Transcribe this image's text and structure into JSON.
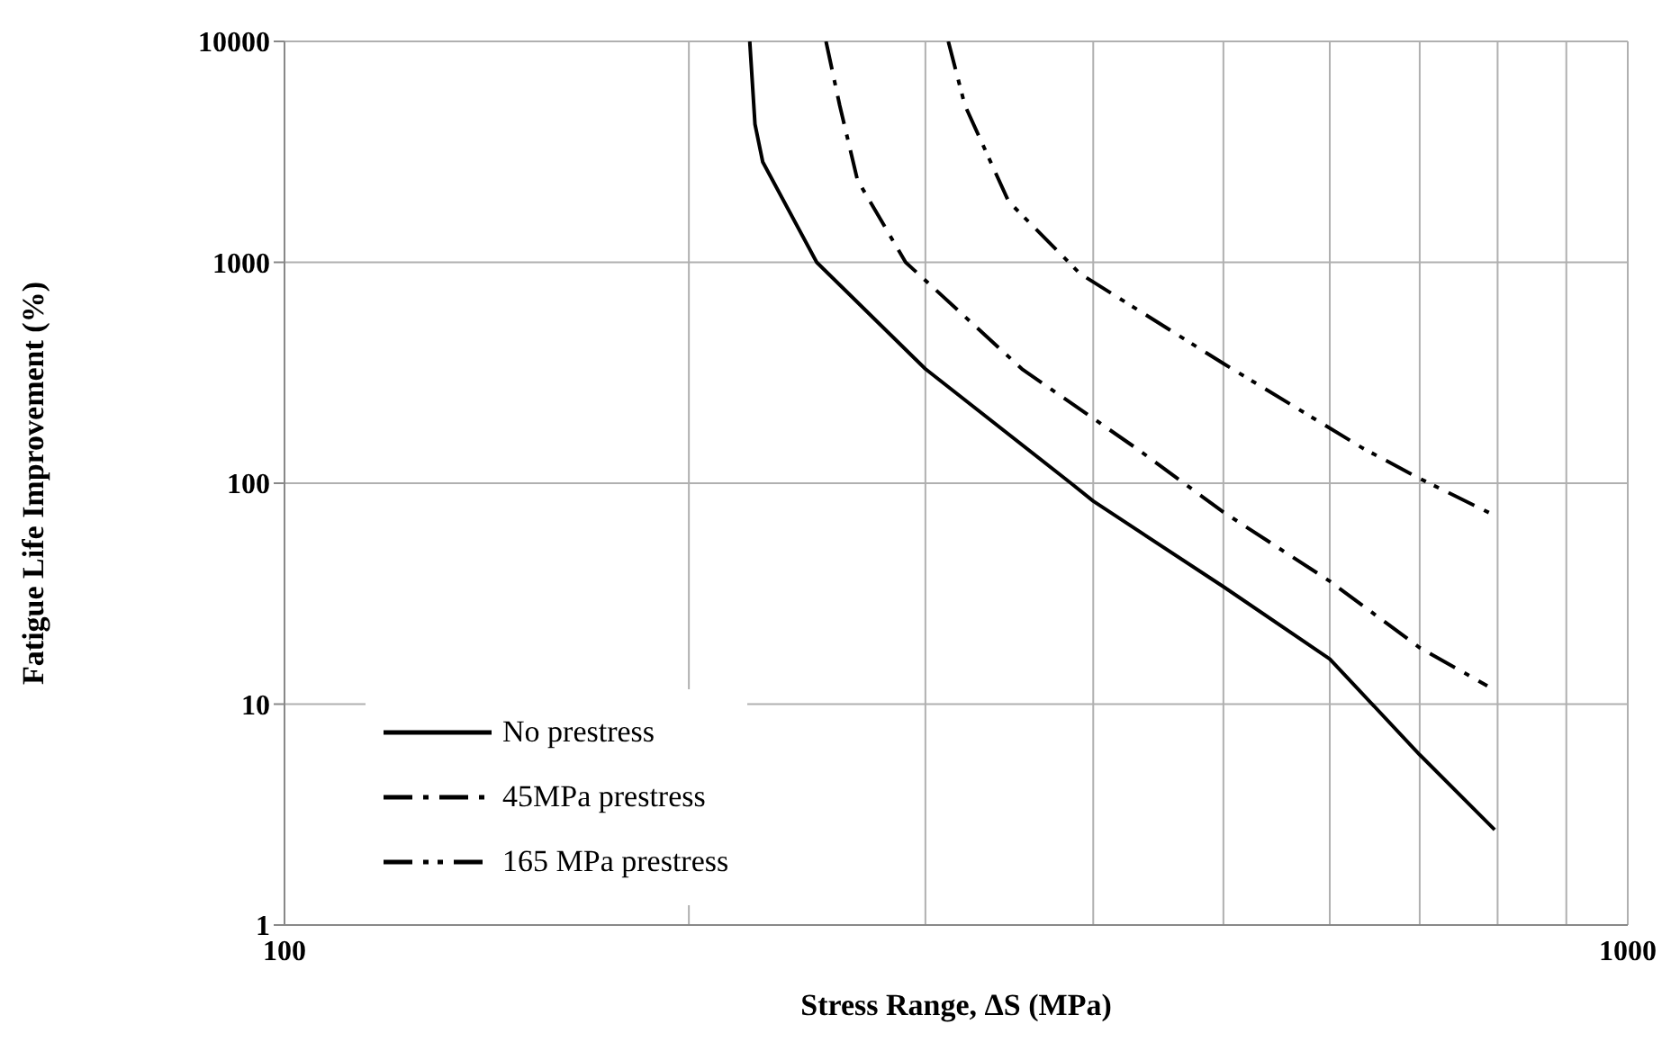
{
  "chart_data": {
    "type": "line",
    "xlabel": "Stress Range, ΔS (MPa)",
    "ylabel": "Fatigue Life Improvement (%)",
    "log": "xy",
    "grid": true,
    "legend": "bottom left",
    "marker": "none",
    "xlim": [
      100,
      1000
    ],
    "xticks": [
      100,
      {
        "value": 200,
        "label": null
      },
      {
        "value": 300,
        "label": null
      },
      {
        "value": 400,
        "label": null
      },
      {
        "value": 500,
        "label": null
      },
      {
        "value": 600,
        "label": null
      },
      {
        "value": 700,
        "label": null
      },
      {
        "value": 800,
        "label": null
      },
      {
        "value": 900,
        "label": null
      },
      1000
    ],
    "ylim": [
      1,
      10000
    ],
    "yticks": [
      1,
      10,
      100,
      1000,
      10000
    ],
    "series": [
      {
        "name": "No prestress",
        "color": "#000000",
        "line_style": "solid",
        "x": [
          222,
          224,
          227,
          249,
          300,
          385,
          400,
          500,
          600,
          700,
          796
        ],
        "values": [
          10000,
          4220,
          2846,
          1000,
          329,
          100,
          83,
          34,
          16,
          5.9,
          2.7
        ]
      },
      {
        "name": "45MPa prestress",
        "color": "#000000",
        "line_style": "dashdot",
        "x": [
          253,
          259,
          267,
          290,
          354,
          432,
          500,
          600,
          700,
          786
        ],
        "values": [
          10000,
          5140,
          2360,
          1000,
          329,
          142,
          74,
          36,
          18,
          12.1
        ]
      },
      {
        "name": "165 MPa prestress",
        "color": "#000000",
        "line_style": "dashdotdot",
        "x": [
          312,
          321,
          346,
          391,
          500,
          635,
          700,
          794
        ],
        "values": [
          10000,
          5140,
          1884,
          889,
          348,
          144,
          105,
          72
        ]
      }
    ]
  }
}
